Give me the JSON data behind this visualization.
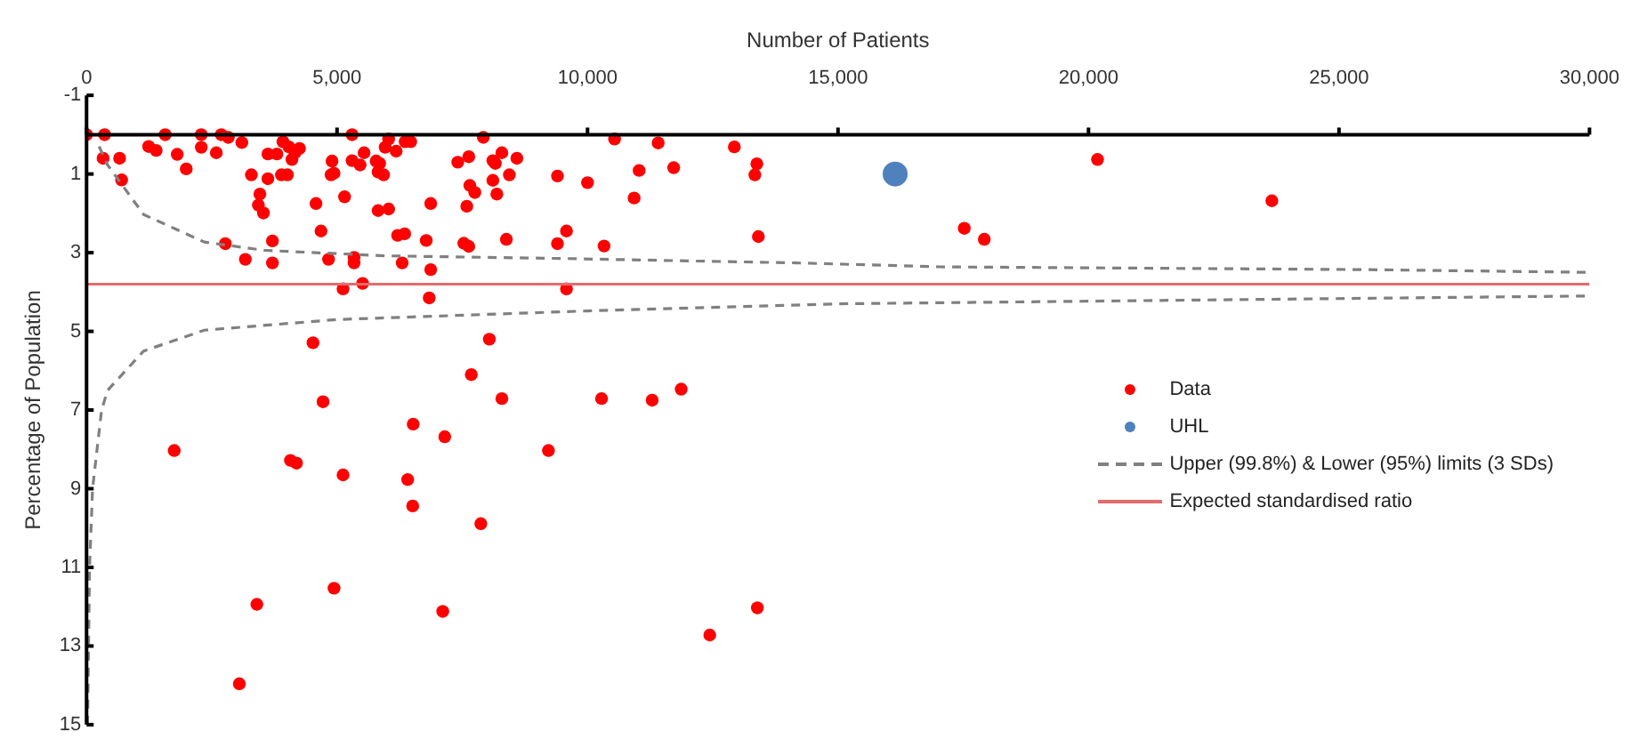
{
  "chart_data": {
    "type": "scatter",
    "xlabel": "Number of Patients",
    "ylabel": "Percentage of Population",
    "xlim": [
      0,
      30000
    ],
    "xticks": [
      0,
      {
        "value": 5000,
        "label": "5,000"
      },
      {
        "value": 10000,
        "label": "10,000"
      },
      {
        "value": 15000,
        "label": "15,000"
      },
      {
        "value": 20000,
        "label": "20,000"
      },
      {
        "value": 25000,
        "label": "25,000"
      },
      {
        "value": 30000,
        "label": "30,000"
      }
    ],
    "ylim": [
      15,
      -1
    ],
    "yticks": [
      -1,
      1,
      3,
      5,
      7,
      9,
      11,
      13,
      15
    ],
    "grid": false,
    "legend": "right",
    "series": [
      {
        "name": "Data",
        "marker": "circle",
        "color": "#ff0000",
        "x": [
          0,
          360,
          330,
          660,
          700,
          1240,
          1390,
          1570,
          1810,
          1990,
          2290,
          2290,
          2590,
          2690,
          2830,
          3100,
          2770,
          3170,
          3290,
          3460,
          3430,
          3530,
          3620,
          3710,
          3710,
          3620,
          3800,
          3920,
          4040,
          3890,
          4010,
          4100,
          4160,
          4250,
          4580,
          4520,
          4680,
          4830,
          4900,
          4880,
          4940,
          5120,
          5150,
          5300,
          5340,
          5340,
          5300,
          5460,
          5510,
          5540,
          5780,
          5820,
          5930,
          5850,
          5820,
          6030,
          5960,
          6030,
          6180,
          6360,
          6470,
          6210,
          6350,
          6300,
          6780,
          6870,
          6870,
          6840,
          7410,
          7630,
          7590,
          7530,
          7630,
          7650,
          7750,
          7920,
          8040,
          7680,
          8110,
          8110,
          8160,
          8190,
          8290,
          8440,
          8590,
          8380,
          9400,
          9400,
          9580,
          9580,
          10000,
          10330,
          10540,
          10930,
          11030,
          11410,
          11720,
          12930,
          13380,
          13340,
          13410,
          20180,
          23660,
          17520,
          17920,
          1750,
          3050,
          3400,
          4070,
          4190,
          4720,
          4940,
          5120,
          6410,
          6510,
          6520,
          7110,
          7150,
          7870,
          8290,
          9220,
          10280,
          11290,
          11870,
          12440,
          13390
        ],
        "values": [
          0,
          0,
          0.6,
          0.6,
          1.15,
          0.3,
          0.4,
          0,
          0.5,
          0.87,
          0,
          0.32,
          0.46,
          0,
          0.07,
          0.2,
          2.77,
          3.17,
          1.02,
          1.51,
          1.79,
          1.99,
          1.12,
          2.7,
          3.26,
          0.49,
          0.49,
          0.18,
          0.31,
          1.02,
          1.02,
          0.63,
          0.46,
          0.35,
          1.75,
          5.29,
          2.45,
          3.17,
          0.67,
          1.02,
          0.98,
          3.92,
          1.58,
          0,
          3.12,
          3.26,
          0.66,
          0.77,
          3.78,
          0.46,
          0.67,
          0.95,
          1.02,
          0.73,
          1.93,
          1.89,
          0.32,
          0.11,
          0.42,
          0.18,
          0.18,
          2.56,
          2.52,
          3.26,
          2.69,
          1.75,
          3.43,
          4.15,
          0.7,
          0.56,
          1.82,
          2.76,
          2.84,
          1.29,
          1.47,
          0.07,
          5.2,
          6.1,
          0.66,
          1.16,
          0.73,
          1.51,
          0.46,
          1.02,
          0.6,
          2.66,
          1.05,
          2.77,
          2.45,
          3.92,
          1.22,
          2.83,
          0.11,
          1.61,
          0.91,
          0.21,
          0.84,
          0.31,
          0.74,
          1.02,
          2.59,
          0.63,
          1.68,
          2.38,
          2.66,
          8.03,
          13.96,
          11.94,
          8.28,
          8.35,
          6.79,
          11.53,
          8.65,
          8.77,
          9.44,
          7.36,
          12.12,
          7.68,
          9.89,
          6.71,
          8.03,
          6.71,
          6.75,
          6.47,
          12.72,
          12.03
        ]
      },
      {
        "name": "UHL",
        "marker": "circle",
        "color": "#4f81bd",
        "x": [
          16140
        ],
        "values": [
          1.0
        ]
      },
      {
        "name": "Upper (99.8%) & Lower (95%) limits (3 SDs)",
        "type": "line",
        "marker": "none",
        "line_style": "dashed",
        "color": "#808080",
        "x": [
          250,
          420,
          1140,
          2350,
          3550,
          5960,
          9580,
          14160,
          17030,
          25500,
          30000
        ],
        "values": [
          0.3,
          0.77,
          2.03,
          2.73,
          2.94,
          3.08,
          3.15,
          3.26,
          3.36,
          3.43,
          3.5
        ]
      },
      {
        "type": "line",
        "marker": "none",
        "line_style": "dashed",
        "color": "#808080",
        "x": [
          20,
          60,
          120,
          300,
          420,
          1140,
          2350,
          5000,
          10000,
          15000,
          30000
        ],
        "values": [
          15,
          11,
          9,
          7,
          6.5,
          5.5,
          4.97,
          4.7,
          4.48,
          4.3,
          4.1
        ]
      },
      {
        "name": "Expected standardised ratio",
        "type": "line",
        "marker": "none",
        "line_style": "solid",
        "color": "#e46c6c",
        "x": [
          0,
          30000
        ],
        "values": [
          3.8,
          3.8
        ]
      }
    ]
  }
}
